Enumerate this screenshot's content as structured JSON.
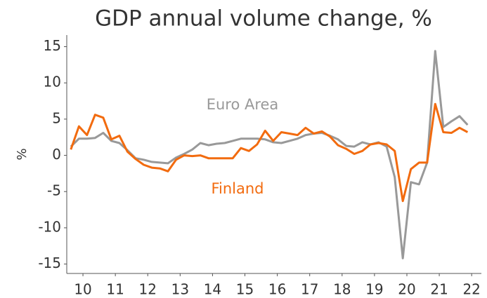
{
  "chart_data": {
    "type": "line",
    "title": "GDP annual volume change, %",
    "y_label": "%",
    "x": [
      10.125,
      10.375,
      10.625,
      10.875,
      11.125,
      11.375,
      11.625,
      11.875,
      12.125,
      12.375,
      12.625,
      12.875,
      13.125,
      13.375,
      13.625,
      13.875,
      14.125,
      14.375,
      14.625,
      14.875,
      15.125,
      15.375,
      15.625,
      15.875,
      16.125,
      16.375,
      16.625,
      16.875,
      17.125,
      17.375,
      17.625,
      17.875,
      18.125,
      18.375,
      18.625,
      18.875,
      19.125,
      19.375,
      19.625,
      19.875,
      20.125,
      20.375,
      20.625,
      20.875,
      21.125,
      21.375,
      21.625,
      21.875,
      22.125,
      22.375
    ],
    "series": [
      {
        "name": "Euro Area",
        "color": "#999999",
        "values": [
          1.2,
          2.3,
          2.3,
          2.4,
          3.1,
          2.0,
          1.7,
          0.7,
          -0.4,
          -0.6,
          -0.9,
          -1.0,
          -1.1,
          -0.3,
          0.2,
          0.8,
          1.7,
          1.4,
          1.6,
          1.7,
          2.0,
          2.3,
          2.3,
          2.3,
          2.2,
          1.8,
          1.7,
          2.0,
          2.3,
          2.8,
          3.0,
          3.1,
          2.7,
          2.2,
          1.3,
          1.2,
          1.8,
          1.5,
          1.8,
          1.2,
          -3.0,
          -14.2,
          -3.7,
          -4.0,
          -1.0,
          14.4,
          3.9,
          4.7,
          5.4,
          4.2
        ]
      },
      {
        "name": "Finland",
        "color": "#f26b0f",
        "values": [
          0.8,
          4.0,
          2.8,
          5.6,
          5.2,
          2.2,
          2.7,
          0.5,
          -0.5,
          -1.3,
          -1.7,
          -1.8,
          -2.2,
          -0.6,
          0.0,
          -0.1,
          0.0,
          -0.4,
          -0.4,
          -0.4,
          -0.4,
          1.0,
          0.6,
          1.5,
          3.4,
          2.0,
          3.2,
          3.0,
          2.8,
          3.8,
          3.0,
          3.3,
          2.6,
          1.4,
          0.9,
          0.2,
          0.6,
          1.5,
          1.7,
          1.5,
          0.6,
          -6.3,
          -1.9,
          -1.0,
          -1.0,
          7.1,
          3.2,
          3.1,
          3.8,
          3.2
        ]
      }
    ],
    "xlim": [
      10,
      22.8
    ],
    "xticks": [
      {
        "value": 10.5,
        "label": "10"
      },
      {
        "value": 11.5,
        "label": "11"
      },
      {
        "value": 12.5,
        "label": "12"
      },
      {
        "value": 13.5,
        "label": "13"
      },
      {
        "value": 14.5,
        "label": "14"
      },
      {
        "value": 15.5,
        "label": "15"
      },
      {
        "value": 16.5,
        "label": "16"
      },
      {
        "value": 17.5,
        "label": "17"
      },
      {
        "value": 18.5,
        "label": "18"
      },
      {
        "value": 19.5,
        "label": "19"
      },
      {
        "value": 20.5,
        "label": "20"
      },
      {
        "value": 21.5,
        "label": "21"
      },
      {
        "value": 22.5,
        "label": "22"
      }
    ],
    "ylim": [
      -16.3,
      16.6
    ],
    "yticks": [
      15,
      10,
      5,
      0,
      -5,
      -10,
      -15
    ],
    "grid": false
  }
}
